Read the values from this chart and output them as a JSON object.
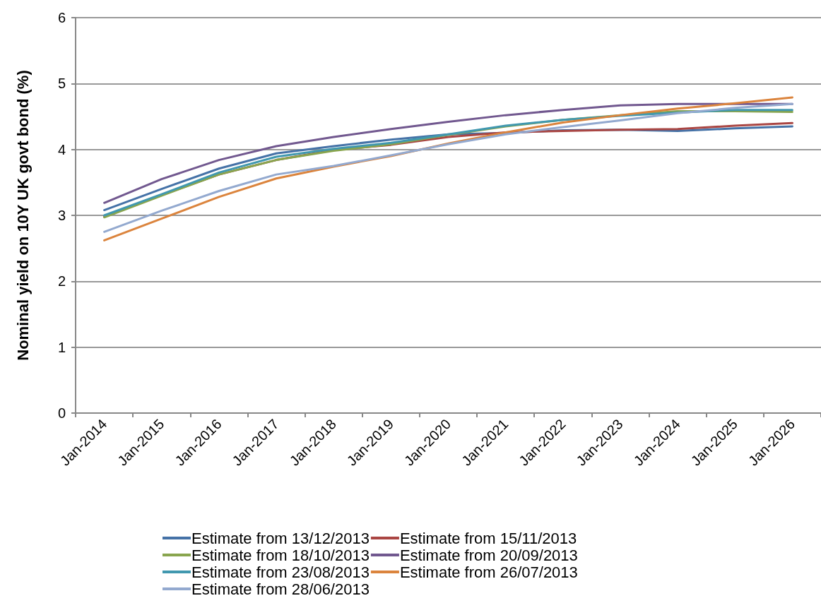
{
  "chart_data": {
    "type": "line",
    "ylabel": "Nominal yield on 10Y UK govt bond (%)",
    "categories": [
      "Jan-2014",
      "Jan-2015",
      "Jan-2016",
      "Jan-2017",
      "Jan-2018",
      "Jan-2019",
      "Jan-2020",
      "Jan-2021",
      "Jan-2022",
      "Jan-2023",
      "Jan-2024",
      "Jan-2025",
      "Jan-2026"
    ],
    "series": [
      {
        "name": "Estimate from 13/12/2013",
        "color": "#4572a7",
        "values": [
          3.08,
          3.4,
          3.71,
          3.94,
          4.05,
          4.15,
          4.23,
          4.25,
          4.29,
          4.3,
          4.28,
          4.32,
          4.35
        ]
      },
      {
        "name": "Estimate from 15/11/2013",
        "color": "#aa4643",
        "values": [
          2.98,
          3.31,
          3.62,
          3.84,
          3.99,
          4.07,
          4.19,
          4.26,
          4.28,
          4.3,
          4.31,
          4.36,
          4.4
        ]
      },
      {
        "name": "Estimate from 18/10/2013",
        "color": "#89a54e",
        "values": [
          2.97,
          3.3,
          3.62,
          3.84,
          3.98,
          4.08,
          4.22,
          4.35,
          4.45,
          4.52,
          4.58,
          4.58,
          4.57
        ]
      },
      {
        "name": "Estimate from 20/09/2013",
        "color": "#71588f",
        "values": [
          3.19,
          3.55,
          3.84,
          4.05,
          4.19,
          4.31,
          4.42,
          4.52,
          4.6,
          4.67,
          4.69,
          4.69,
          4.69
        ]
      },
      {
        "name": "Estimate from 23/08/2013",
        "color": "#4198af",
        "values": [
          3.0,
          3.32,
          3.65,
          3.89,
          4.01,
          4.1,
          4.23,
          4.36,
          4.45,
          4.51,
          4.56,
          4.6,
          4.6
        ]
      },
      {
        "name": "Estimate from 26/07/2013",
        "color": "#db843d",
        "values": [
          2.62,
          2.95,
          3.28,
          3.56,
          3.74,
          3.9,
          4.09,
          4.26,
          4.41,
          4.52,
          4.62,
          4.7,
          4.79
        ]
      },
      {
        "name": "Estimate from 28/06/2013",
        "color": "#93a9cf",
        "values": [
          2.75,
          3.07,
          3.37,
          3.62,
          3.75,
          3.91,
          4.08,
          4.23,
          4.34,
          4.44,
          4.55,
          4.63,
          4.69
        ]
      }
    ],
    "ylim": [
      0,
      6
    ],
    "yticks": [
      0,
      1,
      2,
      3,
      4,
      5,
      6
    ],
    "grid": "y",
    "legend": "bottom",
    "marker": "none",
    "line_style": "solid"
  }
}
